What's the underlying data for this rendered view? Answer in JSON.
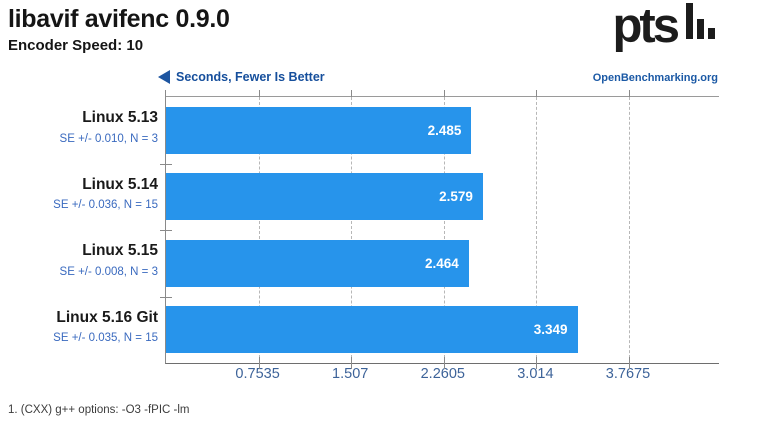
{
  "header": {
    "title": "libavif avifenc 0.9.0",
    "subtitle": "Encoder Speed: 10"
  },
  "logo": {
    "brand": "pts",
    "site": "OpenBenchmarking.org"
  },
  "legend": {
    "label": "Seconds, Fewer Is Better"
  },
  "footer": {
    "note": "1. (CXX) g++ options: -O3 -fPIC -lm"
  },
  "chart_data": {
    "type": "bar",
    "orientation": "horizontal",
    "title": "libavif avifenc 0.9.0",
    "subtitle": "Encoder Speed: 10",
    "unit_label": "Seconds, Fewer Is Better",
    "lower_is_better": true,
    "categories": [
      "Linux 5.13",
      "Linux 5.14",
      "Linux 5.15",
      "Linux 5.16 Git"
    ],
    "values": [
      2.485,
      2.579,
      2.464,
      3.349
    ],
    "value_labels": [
      "2.485",
      "2.579",
      "2.464",
      "3.349"
    ],
    "errors": [
      "SE +/- 0.010, N = 3",
      "SE +/- 0.036, N = 15",
      "SE +/- 0.008, N = 3",
      "SE +/- 0.035, N = 15"
    ],
    "x_ticks": [
      0.7535,
      1.507,
      2.2605,
      3.014,
      3.7675
    ],
    "x_tick_labels": [
      "0.7535",
      "1.507",
      "2.2605",
      "3.014",
      "3.7675"
    ],
    "xlim": [
      0,
      4.5
    ],
    "grid": "dashed-vertical",
    "bar_color": "#2794eb",
    "value_text_color": "#ffffff",
    "accent_blue": "#164f9c"
  }
}
